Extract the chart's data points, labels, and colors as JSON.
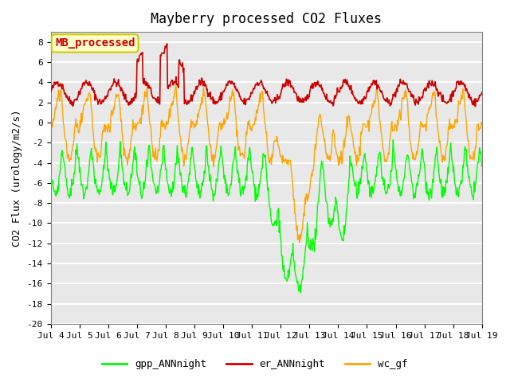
{
  "title": "Mayberry processed CO2 Fluxes",
  "ylabel": "CO2 Flux (urology/m2/s)",
  "ylim": [
    -20,
    9
  ],
  "yticks": [
    -20,
    -18,
    -16,
    -14,
    -12,
    -10,
    -8,
    -6,
    -4,
    -2,
    0,
    2,
    4,
    6,
    8
  ],
  "xlim_days": [
    0,
    15
  ],
  "x_tick_labels": [
    "Jul 4",
    "Jul 5",
    "Jul 6",
    "Jul 7",
    "Jul 8",
    "Jul 9",
    "Jul 10",
    "Jul 11",
    "Jul 12",
    "Jul 13",
    "Jul 14",
    "Jul 15",
    "Jul 16",
    "Jul 17",
    "Jul 18",
    "Jul 19"
  ],
  "colors": {
    "gpp": "#00FF00",
    "er": "#CC0000",
    "wc": "#FFA500"
  },
  "legend_labels": [
    "gpp_ANNnight",
    "er_ANNnight",
    "wc_gf"
  ],
  "annotation_text": "MB_processed",
  "annotation_bg": "#FFFFCC",
  "annotation_border": "#CCCC00",
  "annotation_fg": "#CC0000",
  "plot_bg": "#E8E8E8",
  "grid_color": "#FFFFFF",
  "seed": 42,
  "n_points": 720
}
